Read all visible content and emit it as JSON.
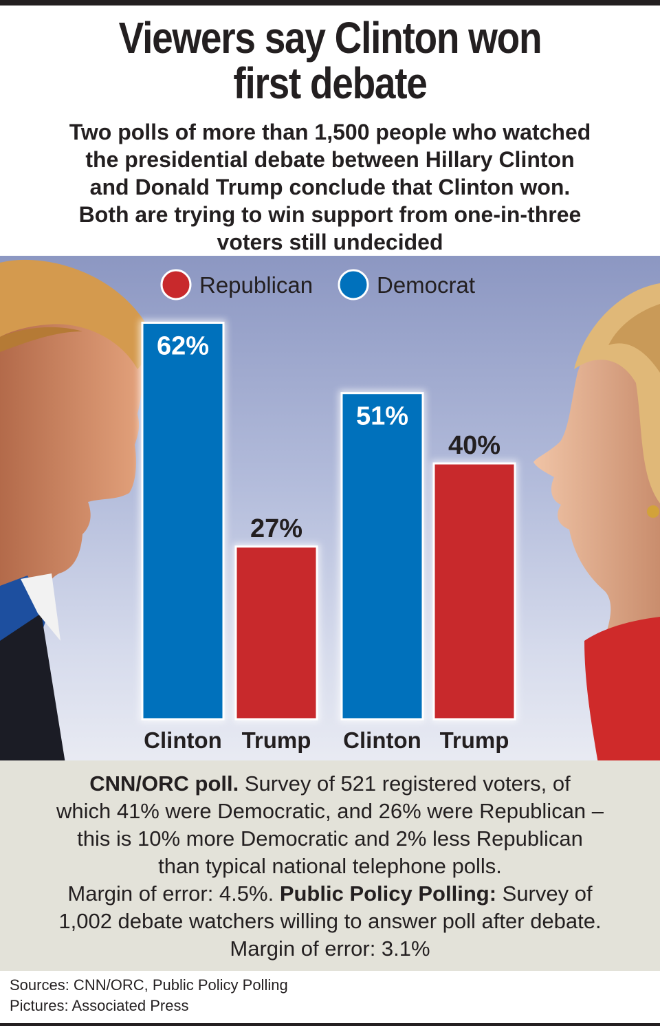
{
  "title": {
    "line1": "Viewers say Clinton won",
    "line2": "first debate"
  },
  "subtitle": {
    "lines": [
      "Two polls of more than 1,500 people who watched",
      "the presidential debate between Hillary Clinton",
      "and Donald Trump conclude that Clinton won.",
      "Both are trying to win support from one-in-three",
      "voters still undecided"
    ]
  },
  "colors": {
    "republican": "#c8292c",
    "democrat": "#0071bc",
    "background_top": "#8c97c2",
    "notes_background": "#e3e2d9"
  },
  "chart_data": {
    "type": "bar",
    "legend": [
      {
        "label": "Republican",
        "color": "#c8292c"
      },
      {
        "label": "Democrat",
        "color": "#0071bc"
      }
    ],
    "legend_position": "top-center",
    "ylim": [
      0,
      70
    ],
    "grid": false,
    "groups": [
      {
        "bars": [
          {
            "label": "Clinton",
            "value": 62,
            "value_label": "62%",
            "party": "Democrat"
          },
          {
            "label": "Trump",
            "value": 27,
            "value_label": "27%",
            "party": "Republican"
          }
        ]
      },
      {
        "bars": [
          {
            "label": "Clinton",
            "value": 51,
            "value_label": "51%",
            "party": "Democrat"
          },
          {
            "label": "Trump",
            "value": 40,
            "value_label": "40%",
            "party": "Republican"
          }
        ]
      }
    ]
  },
  "notes": {
    "line1_bold": "CNN/ORC poll.",
    "line1_rest": " Survey of 521 registered voters, of",
    "line2": "which 41% were Democratic, and 26% were Republican –",
    "line3": "this is 10% more Democratic and 2% less Republican",
    "line4": "than typical national telephone polls.",
    "line5_start": "Margin of error: 4.5%. ",
    "line5_bold": "Public Policy Polling:",
    "line5_rest": " Survey of",
    "line6": "1,002 debate watchers willing to answer poll after debate.",
    "line7": "Margin of error: 3.1%"
  },
  "sources": {
    "line1": "Sources: CNN/ORC, Public Policy Polling",
    "line2": "Pictures: Associated Press"
  }
}
